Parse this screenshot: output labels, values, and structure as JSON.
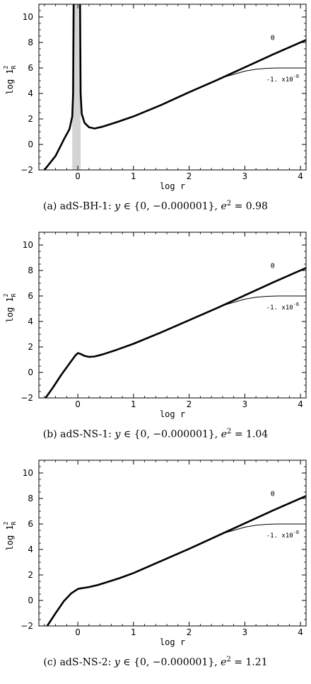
{
  "chart_data": [
    {
      "type": "line",
      "id": "a",
      "caption_prefix": "(a)",
      "caption_name": "adS-BH-1:",
      "caption_y": "y",
      "caption_in": " ∈ {0, −0.000001}, ",
      "caption_e": "e",
      "caption_sq": "2",
      "caption_eq": " = 0.98",
      "xlabel": "log r",
      "ylabel": "log 1R2",
      "ylabel_main": "log 1",
      "ylabel_sub": "R",
      "ylabel_sup": "2",
      "xlim": [
        -0.7,
        4.1
      ],
      "ylim": [
        -2,
        11
      ],
      "xticks": [
        0,
        1,
        2,
        3,
        4
      ],
      "yticks": [
        -2,
        0,
        2,
        4,
        6,
        8,
        10
      ],
      "shaded_band": [
        -0.1,
        0.05
      ],
      "series": [
        {
          "name": "0",
          "role": "main",
          "x": [
            -0.6,
            -0.4,
            -0.25,
            -0.15,
            -0.1,
            -0.085,
            -0.075
          ],
          "y": [
            -2.0,
            -0.9,
            0.4,
            1.2,
            2.2,
            4.0,
            11.0
          ]
        },
        {
          "name": "",
          "role": "main2",
          "x": [
            0.04,
            0.05,
            0.07,
            0.12,
            0.2,
            0.3,
            0.45,
            0.7,
            1.0,
            1.5,
            2.0,
            2.5,
            3.0,
            3.5,
            4.1
          ],
          "y": [
            11.0,
            4.0,
            2.4,
            1.7,
            1.35,
            1.25,
            1.4,
            1.75,
            2.2,
            3.1,
            4.1,
            5.05,
            6.05,
            7.05,
            8.2
          ]
        },
        {
          "name": "-1. x10",
          "exp": "-6",
          "role": "thin",
          "x": [
            2.6,
            2.8,
            3.0,
            3.2,
            3.4,
            3.6,
            3.8,
            4.1
          ],
          "y": [
            5.25,
            5.5,
            5.75,
            5.9,
            5.97,
            6.0,
            6.0,
            6.0
          ]
        }
      ]
    },
    {
      "type": "line",
      "id": "b",
      "caption_prefix": "(b)",
      "caption_name": "adS-NS-1:",
      "caption_y": "y",
      "caption_in": " ∈ {0, −0.000001}, ",
      "caption_e": "e",
      "caption_sq": "2",
      "caption_eq": " = 1.04",
      "xlabel": "log r",
      "ylabel": "log 1R2",
      "ylabel_main": "log 1",
      "ylabel_sub": "R",
      "ylabel_sup": "2",
      "xlim": [
        -0.7,
        4.1
      ],
      "ylim": [
        -2,
        11
      ],
      "xticks": [
        0,
        1,
        2,
        3,
        4
      ],
      "yticks": [
        -2,
        0,
        2,
        4,
        6,
        8,
        10
      ],
      "series": [
        {
          "name": "0",
          "role": "main",
          "x": [
            -0.58,
            -0.45,
            -0.3,
            -0.15,
            -0.05,
            0.0,
            0.05,
            0.12,
            0.2,
            0.3,
            0.45,
            0.7,
            1.0,
            1.5,
            2.0,
            2.5,
            3.0,
            3.5,
            4.1
          ],
          "y": [
            -2.0,
            -1.2,
            -0.2,
            0.7,
            1.3,
            1.52,
            1.45,
            1.3,
            1.22,
            1.25,
            1.42,
            1.78,
            2.25,
            3.15,
            4.1,
            5.05,
            6.05,
            7.05,
            8.2
          ]
        },
        {
          "name": "-1. x10",
          "exp": "-6",
          "role": "thin",
          "x": [
            2.6,
            2.8,
            3.0,
            3.2,
            3.4,
            3.6,
            3.8,
            4.1
          ],
          "y": [
            5.25,
            5.5,
            5.75,
            5.9,
            5.97,
            6.0,
            6.0,
            6.0
          ]
        }
      ]
    },
    {
      "type": "line",
      "id": "c",
      "caption_prefix": "(c)",
      "caption_name": "adS-NS-2:",
      "caption_y": "y",
      "caption_in": " ∈ {0, −0.000001}, ",
      "caption_e": "e",
      "caption_sq": "2",
      "caption_eq": " = 1.21",
      "xlabel": "log r",
      "ylabel": "log 1R2",
      "ylabel_main": "log 1",
      "ylabel_sub": "R",
      "ylabel_sup": "2",
      "xlim": [
        -0.7,
        4.1
      ],
      "ylim": [
        -2,
        11
      ],
      "xticks": [
        0,
        1,
        2,
        3,
        4
      ],
      "yticks": [
        -2,
        0,
        2,
        4,
        6,
        8,
        10
      ],
      "series": [
        {
          "name": "0",
          "role": "main",
          "x": [
            -0.55,
            -0.4,
            -0.25,
            -0.12,
            0.0,
            0.05,
            0.1,
            0.2,
            0.35,
            0.5,
            0.75,
            1.0,
            1.5,
            2.0,
            2.5,
            3.0,
            3.5,
            4.1
          ],
          "y": [
            -2.0,
            -1.0,
            -0.05,
            0.55,
            0.9,
            0.95,
            0.98,
            1.05,
            1.2,
            1.4,
            1.75,
            2.15,
            3.1,
            4.05,
            5.05,
            6.05,
            7.05,
            8.2
          ]
        },
        {
          "name": "-1. x10",
          "exp": "-6",
          "role": "thin",
          "x": [
            2.6,
            2.8,
            3.0,
            3.2,
            3.4,
            3.6,
            3.8,
            4.1
          ],
          "y": [
            5.25,
            5.5,
            5.75,
            5.9,
            5.97,
            6.0,
            6.0,
            6.0
          ]
        }
      ]
    }
  ]
}
